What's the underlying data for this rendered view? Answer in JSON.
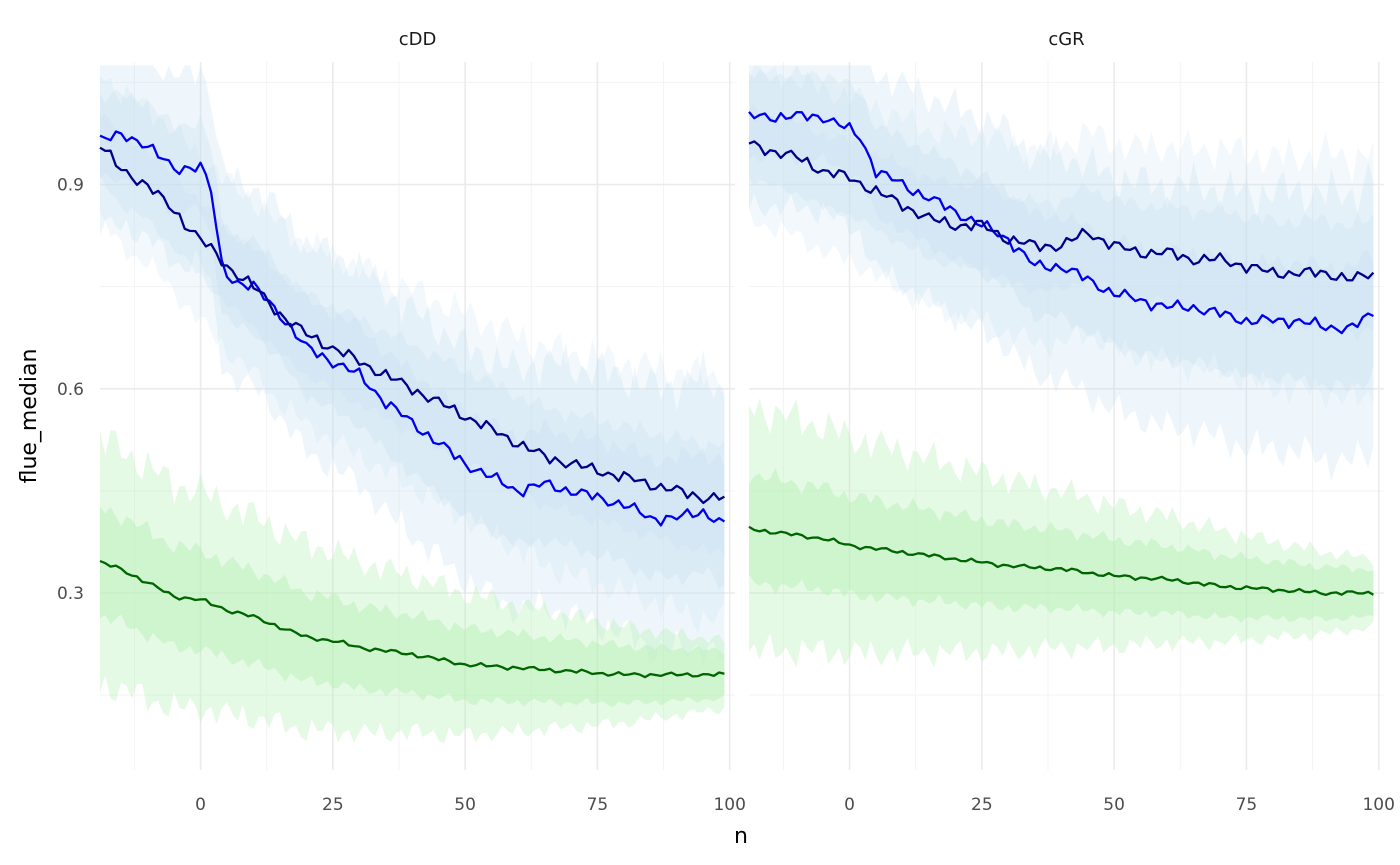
{
  "chart_data": {
    "type": "line",
    "xlabel": "n",
    "ylabel": "flue_median",
    "xlim": [
      -19,
      101
    ],
    "ylim": [
      0.04,
      1.08
    ],
    "x_ticks": [
      0,
      25,
      50,
      75,
      100
    ],
    "x_tick_labels": [
      "0",
      "25",
      "50",
      "75",
      "100"
    ],
    "y_ticks": [
      0.3,
      0.6,
      0.9
    ],
    "y_tick_labels": [
      "0.3",
      "0.6",
      "0.9"
    ],
    "grid": true,
    "colors": {
      "series_blue": "#0000ee",
      "series_navy": "#00008b",
      "series_green": "#006400",
      "band_blue": "#c6dff0",
      "band_green": "#b4f0b4"
    },
    "panels": [
      {
        "title": "cDD",
        "series": [
          {
            "color": "#0000ee",
            "x": [
              -19,
              -15,
              -10,
              -5,
              0,
              2,
              4,
              6,
              10,
              15,
              20,
              25,
              30,
              35,
              40,
              45,
              50,
              55,
              60,
              65,
              70,
              75,
              80,
              85,
              90,
              95,
              99
            ],
            "y": [
              0.97,
              0.97,
              0.96,
              0.92,
              0.93,
              0.89,
              0.78,
              0.76,
              0.75,
              0.71,
              0.66,
              0.64,
              0.62,
              0.58,
              0.55,
              0.52,
              0.49,
              0.47,
              0.45,
              0.46,
              0.45,
              0.44,
              0.43,
              0.41,
              0.41,
              0.42,
              0.4
            ]
          },
          {
            "color": "#00008b",
            "x": [
              -19,
              -15,
              -10,
              -5,
              0,
              5,
              10,
              15,
              20,
              25,
              30,
              35,
              40,
              45,
              50,
              55,
              60,
              65,
              70,
              75,
              80,
              85,
              90,
              95,
              99
            ],
            "y": [
              0.96,
              0.92,
              0.9,
              0.86,
              0.82,
              0.78,
              0.75,
              0.71,
              0.68,
              0.66,
              0.64,
              0.62,
              0.6,
              0.58,
              0.56,
              0.54,
              0.52,
              0.5,
              0.49,
              0.48,
              0.47,
              0.46,
              0.45,
              0.44,
              0.44
            ]
          },
          {
            "color": "#006400",
            "x": [
              -19,
              -15,
              -10,
              -5,
              0,
              5,
              10,
              15,
              20,
              25,
              30,
              35,
              40,
              50,
              60,
              70,
              80,
              90,
              99
            ],
            "y": [
              0.345,
              0.335,
              0.315,
              0.295,
              0.29,
              0.275,
              0.265,
              0.25,
              0.235,
              0.23,
              0.22,
              0.215,
              0.21,
              0.195,
              0.19,
              0.185,
              0.18,
              0.18,
              0.18
            ]
          }
        ]
      },
      {
        "title": "cGR",
        "series": [
          {
            "color": "#0000ee",
            "x": [
              -19,
              -15,
              -10,
              -5,
              0,
              2,
              5,
              10,
              15,
              20,
              25,
              30,
              35,
              40,
              45,
              50,
              55,
              60,
              65,
              70,
              75,
              80,
              85,
              90,
              95,
              99
            ],
            "y": [
              1.0,
              1.0,
              1.0,
              1.0,
              0.98,
              0.97,
              0.92,
              0.9,
              0.88,
              0.86,
              0.84,
              0.82,
              0.78,
              0.78,
              0.76,
              0.74,
              0.73,
              0.72,
              0.72,
              0.71,
              0.7,
              0.7,
              0.7,
              0.69,
              0.69,
              0.71
            ]
          },
          {
            "color": "#00008b",
            "x": [
              -19,
              -15,
              -10,
              -5,
              0,
              5,
              10,
              15,
              20,
              25,
              30,
              35,
              40,
              45,
              50,
              55,
              60,
              65,
              70,
              75,
              80,
              85,
              90,
              95,
              99
            ],
            "y": [
              0.96,
              0.95,
              0.94,
              0.92,
              0.91,
              0.89,
              0.87,
              0.85,
              0.84,
              0.84,
              0.82,
              0.81,
              0.81,
              0.83,
              0.81,
              0.8,
              0.8,
              0.79,
              0.79,
              0.78,
              0.77,
              0.77,
              0.77,
              0.76,
              0.77
            ]
          },
          {
            "color": "#006400",
            "x": [
              -19,
              -15,
              -10,
              -5,
              0,
              10,
              20,
              30,
              40,
              50,
              60,
              70,
              80,
              90,
              99
            ],
            "y": [
              0.395,
              0.39,
              0.385,
              0.38,
              0.37,
              0.36,
              0.35,
              0.34,
              0.335,
              0.325,
              0.32,
              0.31,
              0.305,
              0.3,
              0.3
            ]
          }
        ]
      }
    ]
  }
}
